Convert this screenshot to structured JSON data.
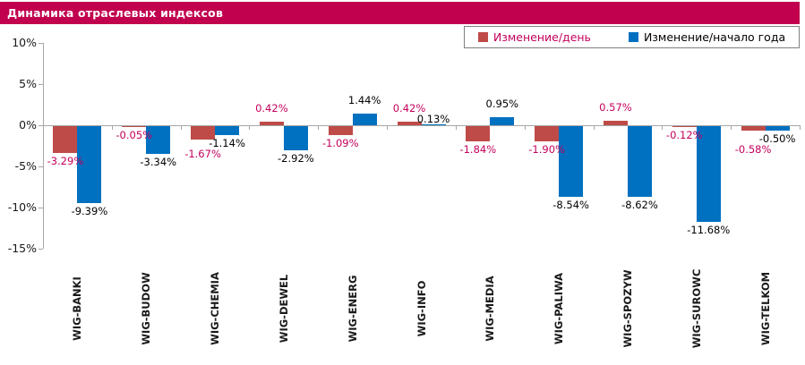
{
  "title_bar": {
    "title": "Динамика отраслевых индексов",
    "bg_color": "#C1014E",
    "text_color": "#FFFFFF"
  },
  "chart_data": {
    "type": "bar",
    "title": "Динамика отраслевых индексов",
    "categories": [
      "WIG-BANKI",
      "WIG-BUDOW",
      "WIG-CHEMIA",
      "WIG-DEWEL",
      "WIG-ENERG",
      "WIG-INFO",
      "WIG-MEDIA",
      "WIG-PALIWA",
      "WIG-SPOZYW",
      "WIG-SUROWC",
      "WIG-TELKOM"
    ],
    "series": [
      {
        "id": "day-change",
        "name": "Изменение/день",
        "color": "#BE4B48",
        "label_color": "#C4015C",
        "values": [
          -3.29,
          -0.05,
          -1.67,
          0.42,
          -1.09,
          0.42,
          -1.84,
          -1.9,
          0.57,
          -0.12,
          -0.58
        ]
      },
      {
        "id": "ytd-change",
        "name": "Изменение/начало года",
        "color": "#0070C0",
        "label_color": "#000000",
        "values": [
          -9.39,
          -3.34,
          -1.14,
          -2.92,
          1.44,
          0.13,
          0.95,
          -8.54,
          -8.62,
          -11.68,
          -0.5
        ]
      }
    ],
    "ylim": [
      -15,
      10
    ],
    "ytick_step": 5,
    "ytick_labels": [
      "10%",
      "5%",
      "0%",
      "-5%",
      "-10%",
      "-15%"
    ],
    "value_suffix": "%",
    "axis_color": "#A6A6A6",
    "grid": false,
    "legend_position": "top-right"
  }
}
